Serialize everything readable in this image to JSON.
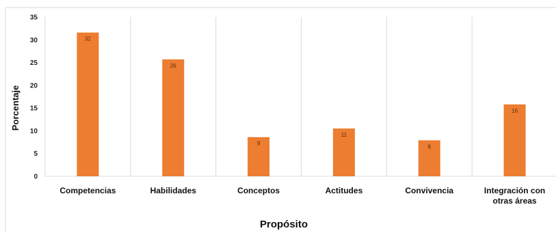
{
  "chart_data": {
    "type": "bar",
    "categories": [
      "Competencias",
      "Habilidades",
      "Conceptos",
      "Actitudes",
      "Convivencia",
      "Integración con otras áreas"
    ],
    "category_lines": [
      [
        "Competencias"
      ],
      [
        "Habilidades"
      ],
      [
        "Conceptos"
      ],
      [
        "Actitudes"
      ],
      [
        "Convivencia"
      ],
      [
        "Integración con",
        "otras áreas"
      ]
    ],
    "values": [
      31.6,
      25.7,
      8.6,
      10.5,
      7.9,
      15.8
    ],
    "data_labels": [
      "32",
      "26",
      "9",
      "11",
      "8",
      "16"
    ],
    "title": "",
    "xlabel": "Propósito",
    "ylabel": "Porcentaje",
    "ylim": [
      0,
      35
    ],
    "yticks": [
      0,
      5,
      10,
      15,
      20,
      25,
      30,
      35
    ],
    "grid": "vertical category separators",
    "legend": "none",
    "colors": {
      "bar": "#ED7D31",
      "grid": "#d9d9d9",
      "frame": "#d9d9d9"
    }
  }
}
